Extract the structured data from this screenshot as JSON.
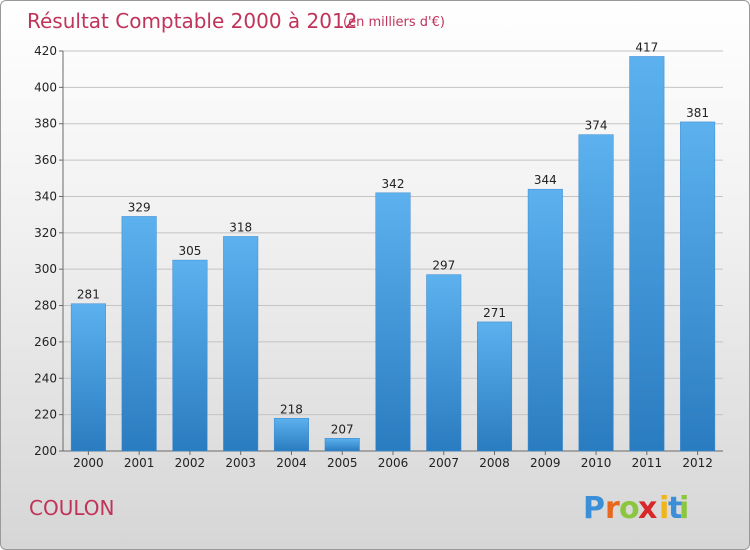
{
  "chart_data": {
    "type": "bar",
    "title": "Résultat Comptable 2000 à 2012",
    "subtitle": "(en milliers d'€)",
    "categories": [
      "2000",
      "2001",
      "2002",
      "2003",
      "2004",
      "2005",
      "2006",
      "2007",
      "2008",
      "2009",
      "2010",
      "2011",
      "2012"
    ],
    "values": [
      281,
      329,
      305,
      318,
      218,
      207,
      342,
      297,
      271,
      344,
      374,
      417,
      381
    ],
    "ylim": [
      200,
      420
    ],
    "yticks": [
      200,
      220,
      240,
      260,
      280,
      300,
      320,
      340,
      360,
      380,
      400,
      420
    ],
    "grid": true,
    "bar_color": "#4a9fe0"
  },
  "footer": {
    "place": "COULON",
    "logo": [
      "P",
      "r",
      "o",
      "x",
      "i",
      "t",
      "i"
    ],
    "logo_colors": [
      "#3a8fd8",
      "#e8681e",
      "#8cc63e",
      "#d8282a",
      "#f0b619",
      "#3a8fd8",
      "#8cc63e"
    ]
  }
}
